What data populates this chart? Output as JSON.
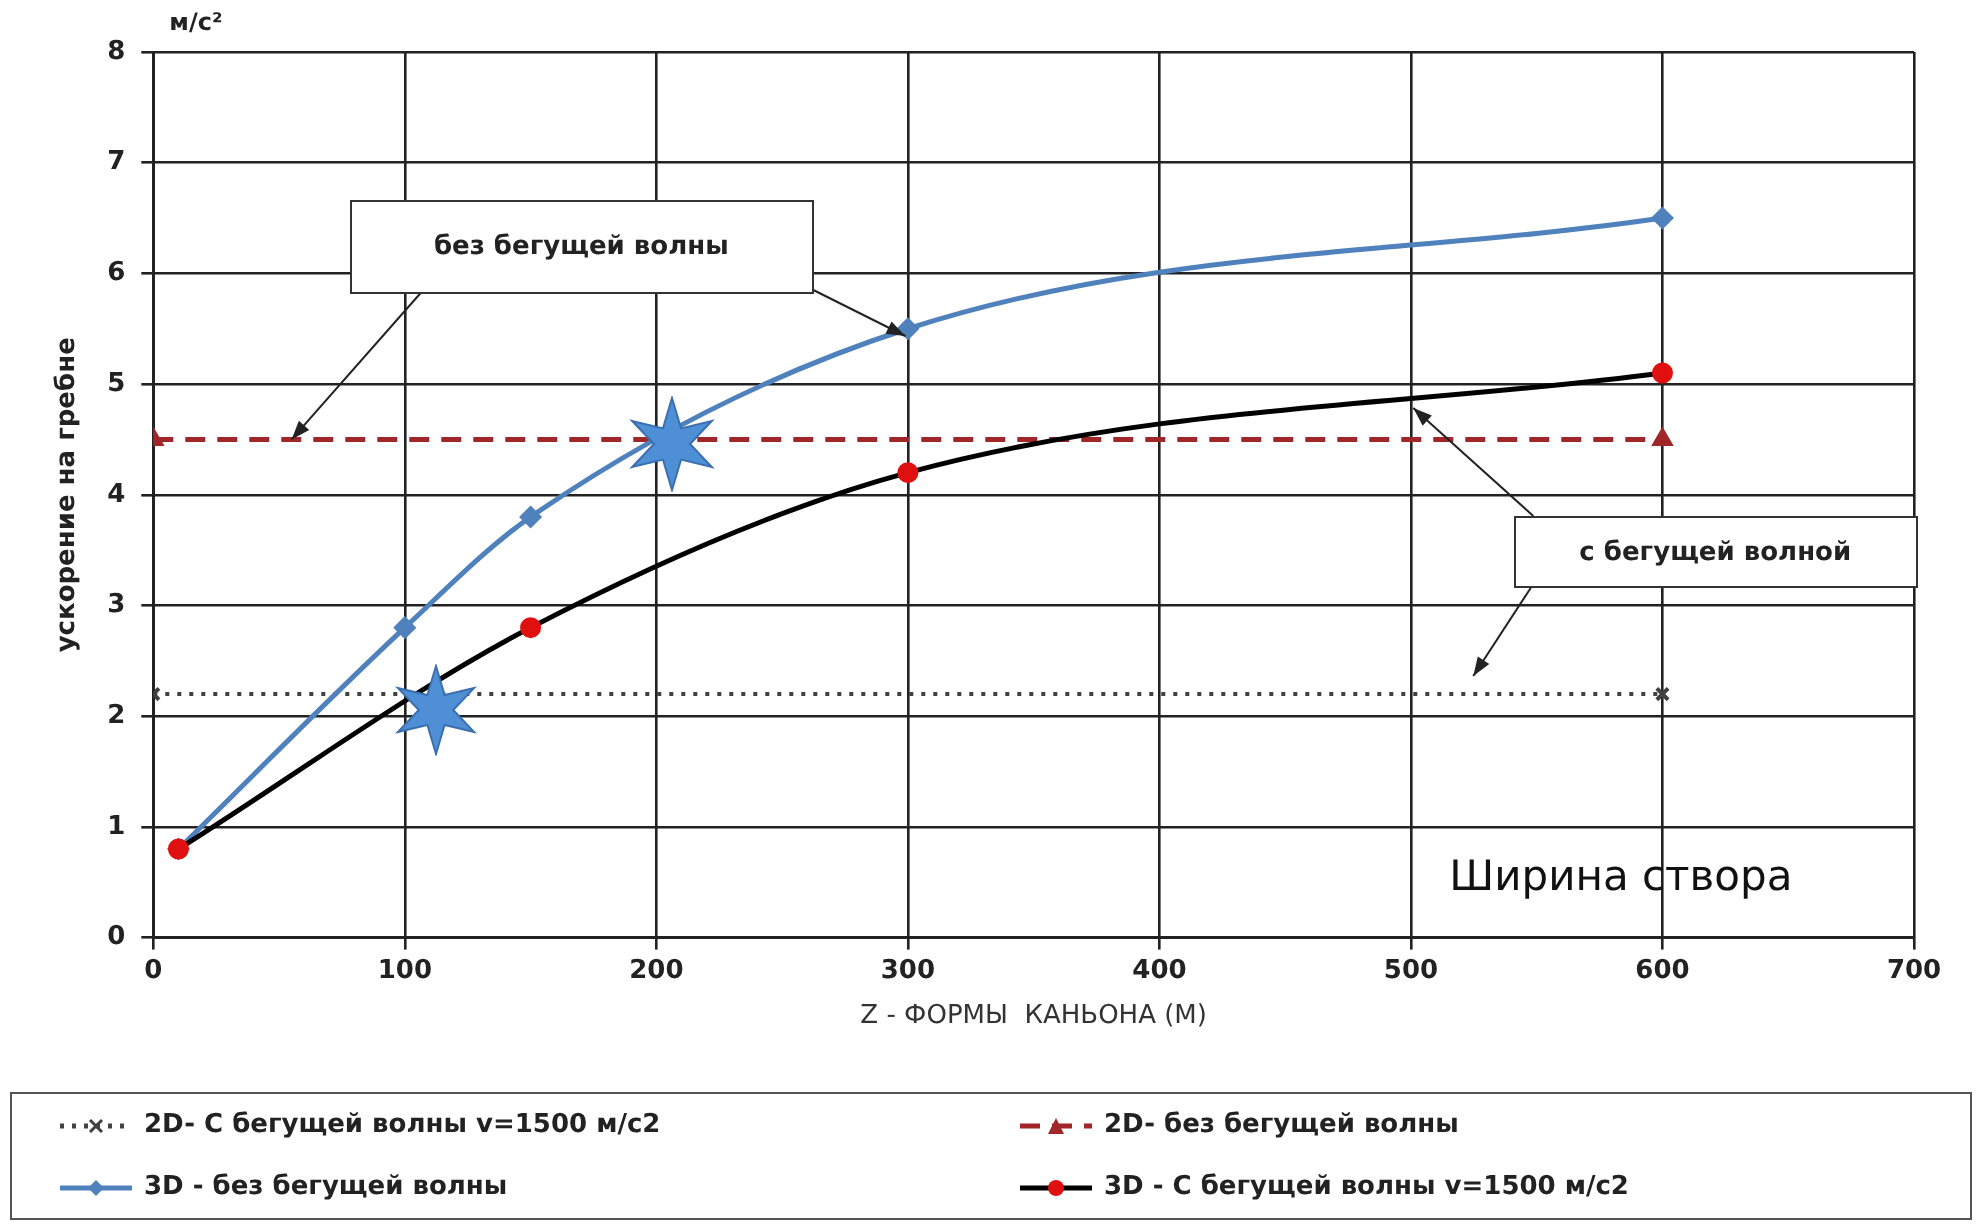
{
  "chart_data": {
    "type": "line",
    "xlabel": "Z - ФОРМЫ  КАНЬОНА (М)",
    "ylabel": "ускорение на гребне",
    "annotations": [
      "м/с²",
      {
        "text": "без бегущей волны",
        "x": 55,
        "y": 4.5
      },
      "с бегущей волной",
      "Ширина створа"
    ],
    "series": [
      {
        "name": "2D- С бегущей волны v=1500 м/с2",
        "color": "#404040",
        "x": [
          0,
          600
        ],
        "values": [
          2.2,
          2.2
        ],
        "marker": "cross",
        "line_style": "dotted"
      },
      {
        "name": "2D- без бегущей волны",
        "color": "#a0262a",
        "x": [
          0,
          600
        ],
        "values": [
          4.5,
          4.5
        ],
        "marker": "triangle",
        "line_style": "dashed"
      },
      {
        "name": "3D - без бегущей волны",
        "color": "#4f81bd",
        "x": [
          10,
          100,
          150,
          300,
          600
        ],
        "values": [
          0.8,
          2.8,
          3.8,
          5.5,
          6.5
        ],
        "marker": "diamond",
        "line_style": "solid"
      },
      {
        "name": "3D - С бегущей волны v=1500 м/с2",
        "color": "#000000",
        "colors": [
          "#e01010",
          "#e01010",
          "#e01010",
          "#e01010"
        ],
        "x": [
          10,
          150,
          300,
          600
        ],
        "values": [
          0.8,
          2.8,
          4.2,
          5.1
        ],
        "marker": "circle",
        "line_style": "solid"
      }
    ],
    "xlim": [
      0,
      700
    ],
    "xticks": [
      0,
      100,
      200,
      300,
      400,
      500,
      600,
      700
    ],
    "ylim": [
      0,
      8
    ],
    "yticks": [
      0,
      1,
      2,
      3,
      4,
      5,
      6,
      7,
      8
    ],
    "grid": true,
    "legend": "bottom"
  }
}
